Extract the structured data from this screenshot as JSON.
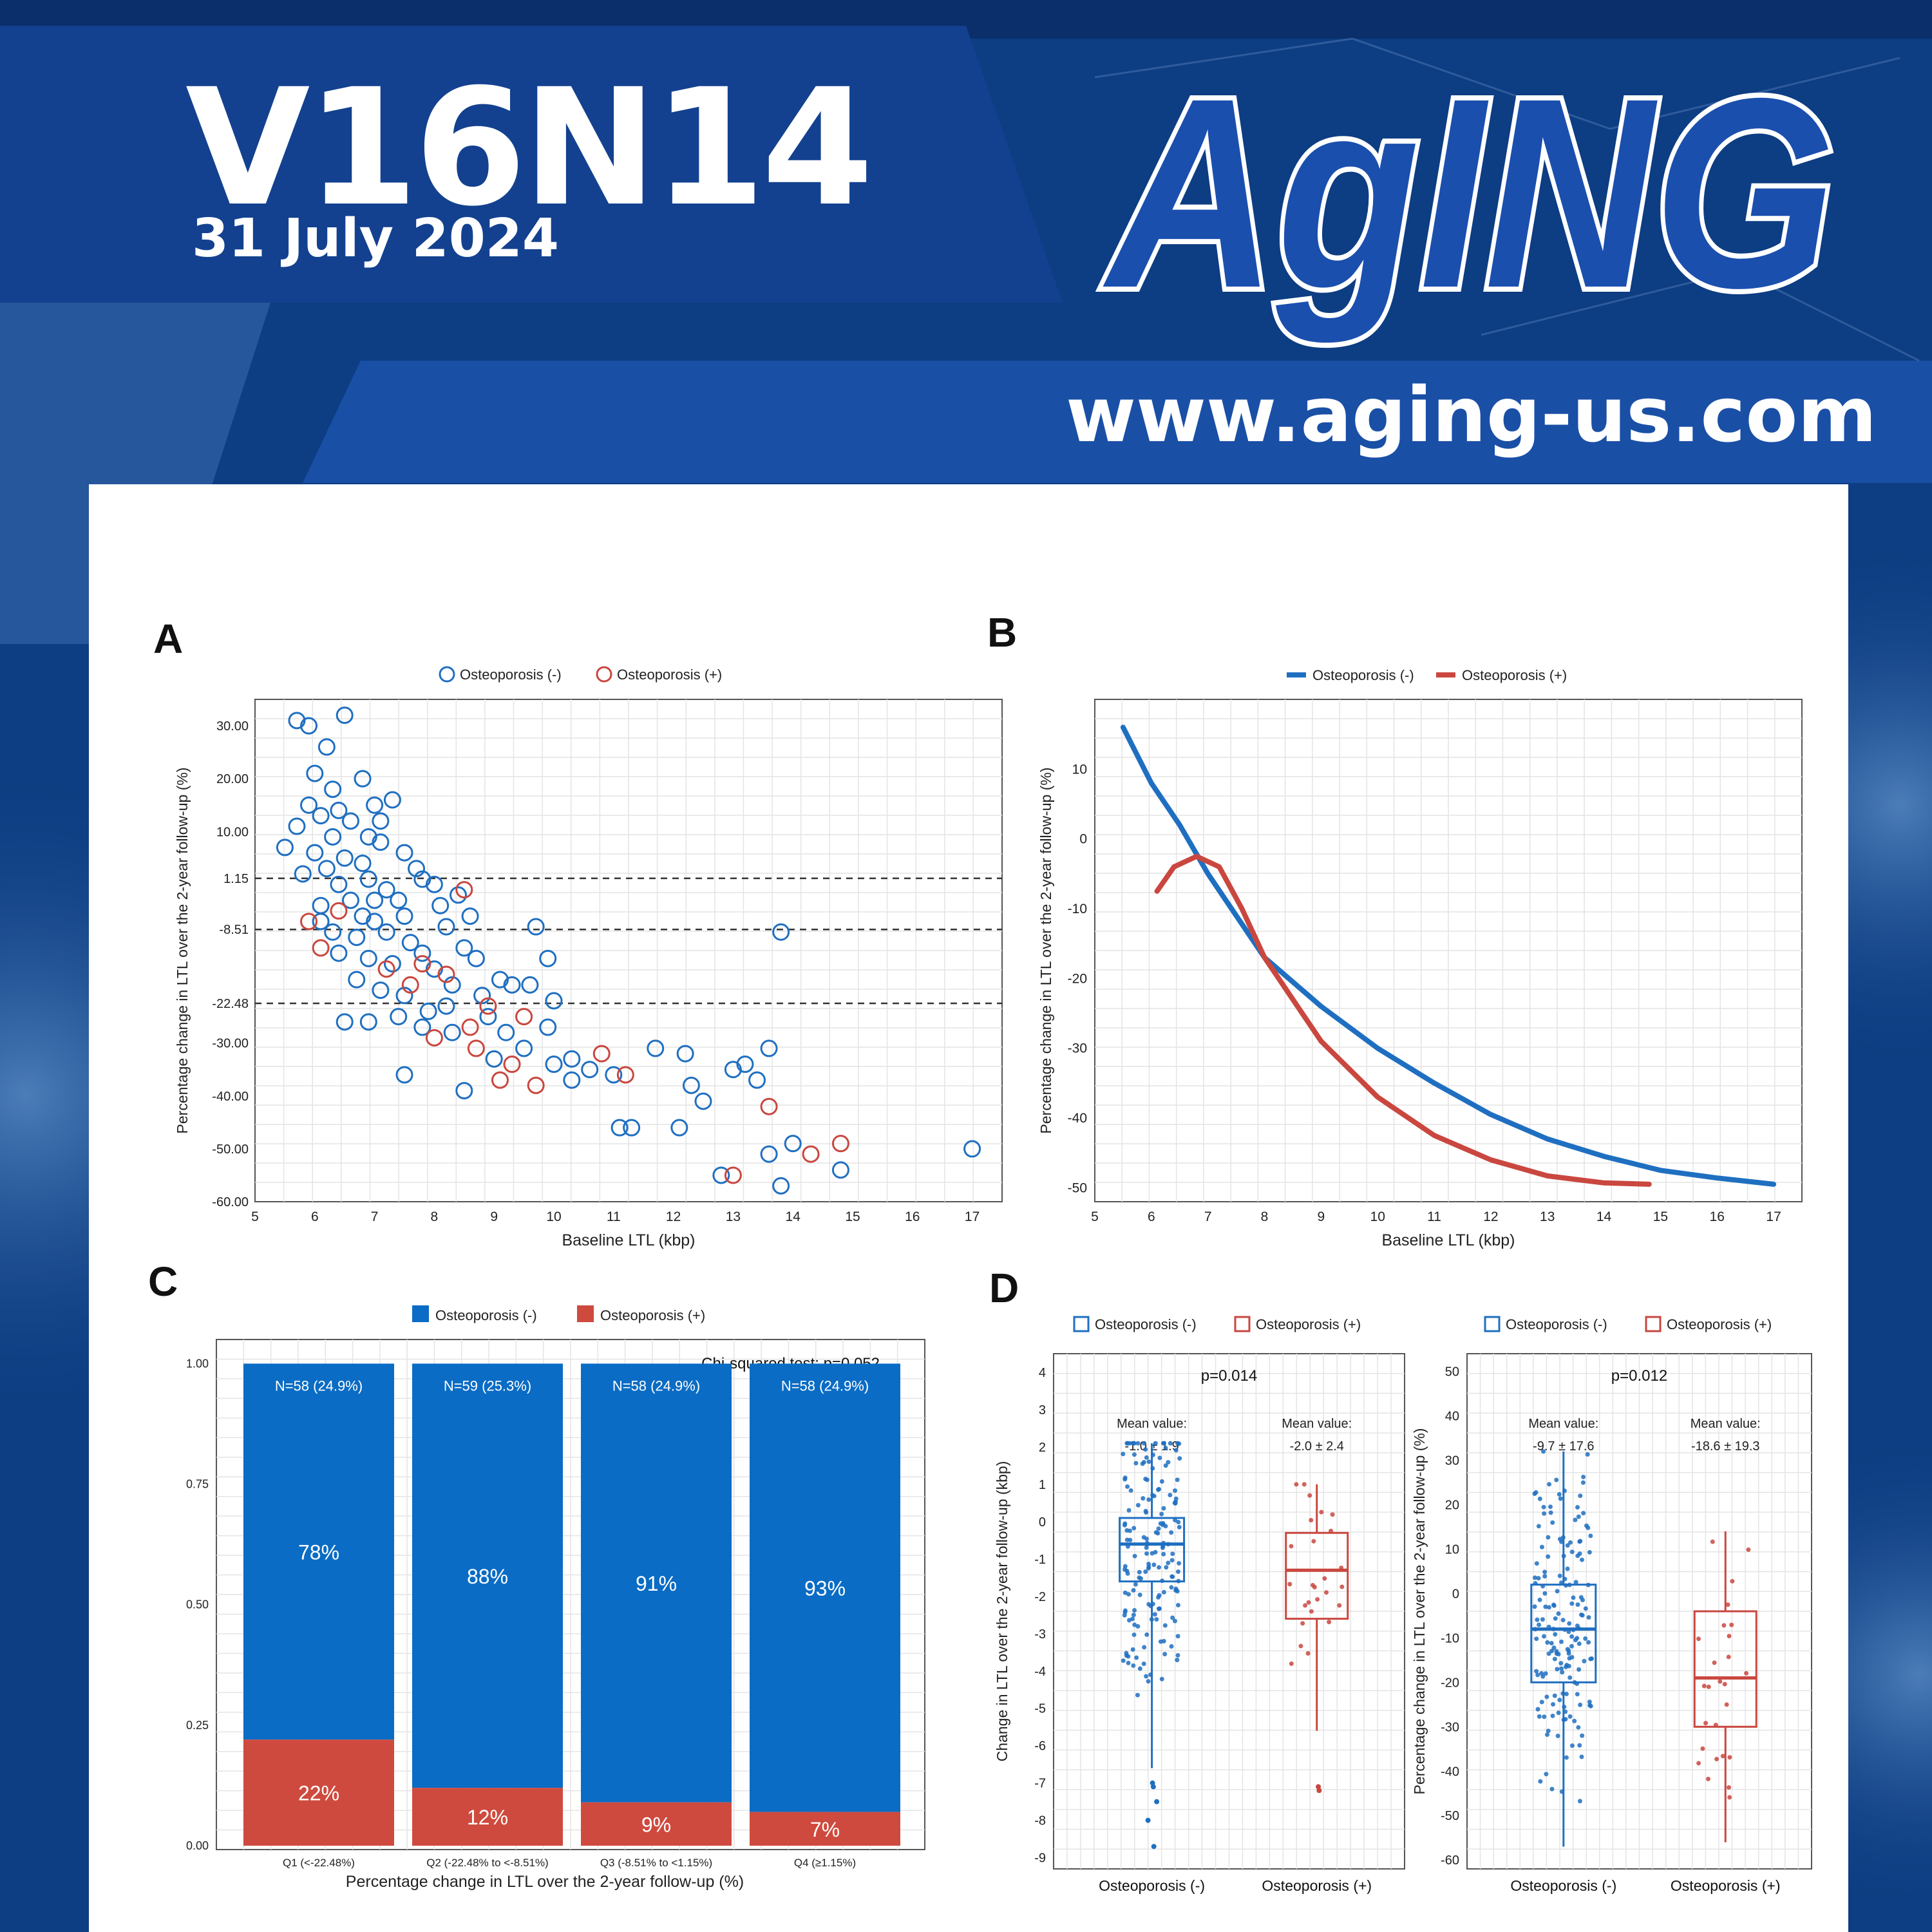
{
  "header": {
    "issue": "V16N14",
    "date": "31 July 2024",
    "logo_text": "AgING",
    "url": "www.aging-us.com"
  },
  "colors": {
    "navy": "#0d3d82",
    "band": "#13418f",
    "logo_blue": "#1a4fae",
    "blue": "#1f6fc1",
    "red": "#c9473f",
    "bar_blue": "#0a6cc4",
    "bar_red": "#cf4a3e"
  },
  "chart_data": [
    {
      "panel": "A",
      "type": "scatter",
      "legend": [
        "Osteoporosis (-)",
        "Osteoporosis (+)"
      ],
      "xlabel": "Baseline LTL (kbp)",
      "ylabel": "Percentage change in LTL over the 2-year follow-up (%)",
      "xlim": [
        5,
        17.5
      ],
      "ylim": [
        -60,
        35
      ],
      "xticks": [
        5,
        6,
        7,
        8,
        9,
        10,
        11,
        12,
        13,
        14,
        15,
        16,
        17
      ],
      "yticks": [
        30,
        20,
        10,
        1.15,
        -8.51,
        -22.48,
        -30,
        -40,
        -50,
        -60
      ],
      "ytick_labels": [
        "30.00",
        "20.00",
        "10.00",
        "1.15",
        "-8.51",
        "-22.48",
        "-30.00",
        "-40.00",
        "-50.00",
        "-60.00"
      ],
      "hlines": [
        1.15,
        -8.51,
        -22.48
      ],
      "series": [
        {
          "name": "Osteoporosis (-)",
          "points": [
            [
              5.7,
              31
            ],
            [
              5.9,
              30
            ],
            [
              6.5,
              32
            ],
            [
              6.2,
              26
            ],
            [
              6.0,
              21
            ],
            [
              6.8,
              20
            ],
            [
              5.9,
              15
            ],
            [
              6.4,
              14
            ],
            [
              6.1,
              13
            ],
            [
              5.7,
              11
            ],
            [
              6.6,
              12
            ],
            [
              7.0,
              15
            ],
            [
              7.3,
              16
            ],
            [
              6.9,
              9
            ],
            [
              6.3,
              9
            ],
            [
              5.5,
              7
            ],
            [
              6.0,
              6
            ],
            [
              6.5,
              5
            ],
            [
              6.8,
              4
            ],
            [
              7.1,
              8
            ],
            [
              7.5,
              6
            ],
            [
              6.2,
              3
            ],
            [
              5.8,
              2
            ],
            [
              6.4,
              0
            ],
            [
              6.9,
              1
            ],
            [
              7.2,
              -1
            ],
            [
              7.7,
              3
            ],
            [
              8.0,
              0
            ],
            [
              6.6,
              -3
            ],
            [
              7.4,
              -3
            ],
            [
              6.1,
              -4
            ],
            [
              6.8,
              -6
            ],
            [
              7.0,
              -7
            ],
            [
              7.5,
              -6
            ],
            [
              8.1,
              -4
            ],
            [
              8.4,
              -2
            ],
            [
              8.6,
              -6
            ],
            [
              6.3,
              -9
            ],
            [
              6.7,
              -10
            ],
            [
              7.2,
              -9
            ],
            [
              7.6,
              -11
            ],
            [
              8.2,
              -8
            ],
            [
              6.4,
              -13
            ],
            [
              6.9,
              -14
            ],
            [
              7.3,
              -15
            ],
            [
              7.8,
              -13
            ],
            [
              8.5,
              -12
            ],
            [
              9.7,
              -8
            ],
            [
              8.0,
              -16
            ],
            [
              8.7,
              -14
            ],
            [
              9.1,
              -18
            ],
            [
              9.9,
              -14
            ],
            [
              9.3,
              -19
            ],
            [
              6.7,
              -18
            ],
            [
              7.1,
              -20
            ],
            [
              7.5,
              -21
            ],
            [
              8.3,
              -19
            ],
            [
              6.5,
              -26
            ],
            [
              6.9,
              -26
            ],
            [
              7.4,
              -25
            ],
            [
              7.9,
              -24
            ],
            [
              8.2,
              -23
            ],
            [
              8.8,
              -21
            ],
            [
              9.6,
              -19
            ],
            [
              7.8,
              -27
            ],
            [
              8.3,
              -28
            ],
            [
              8.9,
              -25
            ],
            [
              9.2,
              -28
            ],
            [
              10.0,
              -22
            ],
            [
              9.9,
              -27
            ],
            [
              9.5,
              -31
            ],
            [
              10.3,
              -33
            ],
            [
              9.0,
              -33
            ],
            [
              10.0,
              -34
            ],
            [
              10.6,
              -35
            ],
            [
              11.0,
              -36
            ],
            [
              10.3,
              -37
            ],
            [
              11.7,
              -31
            ],
            [
              12.2,
              -32
            ],
            [
              12.3,
              -38
            ],
            [
              12.5,
              -41
            ],
            [
              13.0,
              -35
            ],
            [
              13.2,
              -34
            ],
            [
              13.4,
              -37
            ],
            [
              13.6,
              -31
            ],
            [
              7.5,
              -36
            ],
            [
              8.5,
              -39
            ],
            [
              11.1,
              -46
            ],
            [
              11.3,
              -46
            ],
            [
              12.1,
              -46
            ],
            [
              14.0,
              -49
            ],
            [
              13.6,
              -51
            ],
            [
              12.8,
              -55
            ],
            [
              13.8,
              -57
            ],
            [
              14.8,
              -54
            ],
            [
              13.8,
              -9
            ],
            [
              17.0,
              -50
            ],
            [
              6.1,
              -7
            ],
            [
              7.0,
              -3
            ],
            [
              7.8,
              1
            ],
            [
              6.3,
              18
            ],
            [
              7.1,
              12
            ]
          ]
        },
        {
          "name": "Osteoporosis (+)",
          "points": [
            [
              5.9,
              -7
            ],
            [
              6.4,
              -5
            ],
            [
              6.1,
              -12
            ],
            [
              7.2,
              -16
            ],
            [
              7.8,
              -15
            ],
            [
              8.2,
              -17
            ],
            [
              8.6,
              -27
            ],
            [
              9.5,
              -25
            ],
            [
              8.0,
              -29
            ],
            [
              8.7,
              -31
            ],
            [
              9.3,
              -34
            ],
            [
              9.7,
              -38
            ],
            [
              9.1,
              -37
            ],
            [
              8.5,
              -1
            ],
            [
              13.0,
              -55
            ],
            [
              13.6,
              -42
            ],
            [
              14.3,
              -51
            ],
            [
              14.8,
              -49
            ],
            [
              11.2,
              -36
            ],
            [
              10.8,
              -32
            ],
            [
              7.6,
              -19
            ],
            [
              8.9,
              -23
            ]
          ]
        }
      ]
    },
    {
      "panel": "B",
      "type": "line",
      "legend": [
        "Osteoporosis (-)",
        "Osteoporosis (+)"
      ],
      "xlabel": "Baseline LTL (kbp)",
      "ylabel": "Percentage change in LTL over the 2-year follow-up (%)",
      "xlim": [
        5,
        17.5
      ],
      "ylim": [
        -52,
        20
      ],
      "xticks": [
        5,
        6,
        7,
        8,
        9,
        10,
        11,
        12,
        13,
        14,
        15,
        16,
        17
      ],
      "yticks": [
        10,
        0,
        -10,
        -20,
        -30,
        -40,
        -50
      ],
      "series": [
        {
          "name": "Osteoporosis (-)",
          "points": [
            [
              5.5,
              16
            ],
            [
              6.0,
              8
            ],
            [
              6.5,
              2
            ],
            [
              7.0,
              -5
            ],
            [
              7.5,
              -11
            ],
            [
              8.0,
              -17
            ],
            [
              9.0,
              -24
            ],
            [
              10.0,
              -30
            ],
            [
              11.0,
              -35
            ],
            [
              12.0,
              -39.5
            ],
            [
              13.0,
              -43
            ],
            [
              14.0,
              -45.5
            ],
            [
              15.0,
              -47.5
            ],
            [
              16.0,
              -48.6
            ],
            [
              17.0,
              -49.5
            ]
          ]
        },
        {
          "name": "Osteoporosis (+)",
          "points": [
            [
              6.1,
              -7.5
            ],
            [
              6.4,
              -4
            ],
            [
              6.8,
              -2.5
            ],
            [
              7.2,
              -4
            ],
            [
              7.6,
              -10
            ],
            [
              8.0,
              -17
            ],
            [
              9.0,
              -29
            ],
            [
              10.0,
              -37
            ],
            [
              11.0,
              -42.5
            ],
            [
              12.0,
              -46
            ],
            [
              13.0,
              -48.3
            ],
            [
              14.0,
              -49.3
            ],
            [
              14.8,
              -49.5
            ]
          ]
        }
      ]
    },
    {
      "panel": "C",
      "type": "bar",
      "legend": [
        "Osteoporosis (-)",
        "Osteoporosis (+)"
      ],
      "annotation": "Chi-squared test: p=0.052",
      "xlabel": "Percentage change in LTL over the 2-year follow-up (%)",
      "ylim": [
        0,
        1.05
      ],
      "yticks": [
        0,
        0.25,
        0.5,
        0.75,
        1.0
      ],
      "ytick_labels": [
        "0.00",
        "0.25",
        "0.50",
        "0.75",
        "1.00"
      ],
      "categories": [
        "Q1 (<-22.48%)",
        "Q2 (-22.48% to <-8.51%)",
        "Q3 (-8.51% to <1.15%)",
        "Q4 (≥1.15%)"
      ],
      "counts": [
        "N=58 (24.9%)",
        "N=59 (25.3%)",
        "N=58 (24.9%)",
        "N=58 (24.9%)"
      ],
      "series": [
        {
          "name": "Osteoporosis (-)",
          "values": [
            0.78,
            0.88,
            0.91,
            0.93
          ],
          "labels": [
            "78%",
            "88%",
            "91%",
            "93%"
          ]
        },
        {
          "name": "Osteoporosis (+)",
          "values": [
            0.22,
            0.12,
            0.09,
            0.07
          ],
          "labels": [
            "22%",
            "12%",
            "9%",
            "7%"
          ]
        }
      ]
    },
    {
      "panel": "D",
      "type": "box",
      "legend": [
        "Osteoporosis (-)",
        "Osteoporosis (+)"
      ],
      "subplots": [
        {
          "p": "p=0.014",
          "ylabel": "Change in LTL over the 2-year follow-up (kbp)",
          "ylim": [
            -9.3,
            4.5
          ],
          "yticks": [
            4,
            3,
            2,
            1,
            0,
            -1,
            -2,
            -3,
            -4,
            -5,
            -6,
            -7,
            -8,
            -9
          ],
          "categories": [
            "Osteoporosis (-)",
            "Osteoporosis (+)"
          ],
          "mean_title": [
            "Mean value:",
            "Mean value:"
          ],
          "mean_text": [
            "-1.0 ± 1.9",
            "-2.0 ± 2.4"
          ],
          "boxes": [
            {
              "lower_whisker": -6.6,
              "q1": -1.6,
              "median": -0.6,
              "q3": 0.1,
              "upper_whisker": 2.1
            },
            {
              "lower_whisker": -5.6,
              "q1": -2.6,
              "median": -1.3,
              "q3": -0.3,
              "upper_whisker": 1.0
            }
          ],
          "outliers": [
            [
              -7.0,
              -7.5,
              -8.0,
              -8.7,
              -7.1
            ],
            [
              -7.1,
              -7.2
            ]
          ]
        },
        {
          "p": "p=0.012",
          "ylabel": "Percentage change in LTL over the 2-year follow-up (%)",
          "ylim": [
            -62,
            54
          ],
          "yticks": [
            50,
            40,
            30,
            20,
            10,
            0,
            -10,
            -20,
            -30,
            -40,
            -50,
            -60
          ],
          "categories": [
            "Osteoporosis (-)",
            "Osteoporosis (+)"
          ],
          "mean_title": [
            "Mean value:",
            "Mean value:"
          ],
          "mean_text": [
            "-9.7 ± 17.6",
            "-18.6 ± 19.3"
          ],
          "boxes": [
            {
              "lower_whisker": -57,
              "q1": -20,
              "median": -8,
              "q3": 2,
              "upper_whisker": 32
            },
            {
              "lower_whisker": -56,
              "q1": -30,
              "median": -19,
              "q3": -4,
              "upper_whisker": 14
            }
          ],
          "outliers": [
            [],
            []
          ]
        }
      ]
    }
  ]
}
